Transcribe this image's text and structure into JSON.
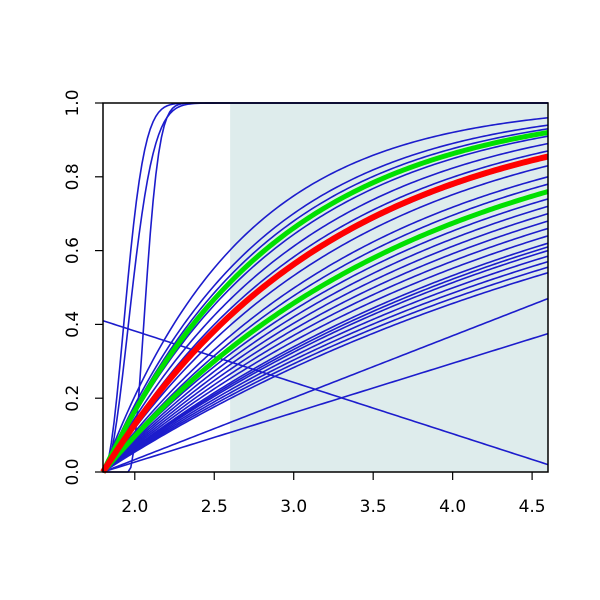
{
  "chart_data": {
    "type": "line",
    "title": "",
    "xlabel": "",
    "ylabel": "",
    "xlim": [
      1.8,
      4.6
    ],
    "ylim": [
      0.0,
      1.0
    ],
    "x_ticks": [
      2.0,
      2.5,
      3.0,
      3.5,
      4.0,
      4.5
    ],
    "x_tick_labels": [
      "2.0",
      "2.5",
      "3.0",
      "3.5",
      "4.0",
      "4.5"
    ],
    "y_ticks": [
      0.0,
      0.2,
      0.4,
      0.6,
      0.8,
      1.0
    ],
    "y_tick_labels": [
      "0.0",
      "0.2",
      "0.4",
      "0.6",
      "0.8",
      "1.0"
    ],
    "grid": false,
    "legend": "none",
    "shaded_region": {
      "x_start": 2.6,
      "x_end": 4.6,
      "y_start": 0.0,
      "y_end": 1.0,
      "color": "#deecec"
    },
    "colors": {
      "sample": "#1c1ccc",
      "mean": "#ff0000",
      "bound": "#00e000",
      "axis": "#000000"
    },
    "curve_family": {
      "x0": 1.8,
      "x_end": 4.6
    },
    "sample_curves": [
      {
        "kind": "steep",
        "x0": 1.8,
        "a": 30
      },
      {
        "kind": "steep",
        "x0": 1.8,
        "a": 20
      },
      {
        "kind": "steep",
        "x0": 1.96,
        "a": 55
      },
      {
        "kind": "linear",
        "y0": 0.41,
        "y1": 0.02
      },
      {
        "kind": "linear",
        "y0": 0.0,
        "y1": 0.47
      },
      {
        "kind": "linear",
        "y0": 0.0,
        "y1": 0.375
      },
      {
        "kind": "sat",
        "y_end": 0.96
      },
      {
        "kind": "sat",
        "y_end": 0.94
      },
      {
        "kind": "sat",
        "y_end": 0.93
      },
      {
        "kind": "sat",
        "y_end": 0.91
      },
      {
        "kind": "sat",
        "y_end": 0.89
      },
      {
        "kind": "sat",
        "y_end": 0.87
      },
      {
        "kind": "sat",
        "y_end": 0.85
      },
      {
        "kind": "sat",
        "y_end": 0.83
      },
      {
        "kind": "sat",
        "y_end": 0.8
      },
      {
        "kind": "sat",
        "y_end": 0.78
      },
      {
        "kind": "sat",
        "y_end": 0.76
      },
      {
        "kind": "sat",
        "y_end": 0.74
      },
      {
        "kind": "sat",
        "y_end": 0.72
      },
      {
        "kind": "sat",
        "y_end": 0.7
      },
      {
        "kind": "sat",
        "y_end": 0.68
      },
      {
        "kind": "sat",
        "y_end": 0.66
      },
      {
        "kind": "sat",
        "y_end": 0.64
      },
      {
        "kind": "sat",
        "y_end": 0.62
      },
      {
        "kind": "sat",
        "y_end": 0.61
      },
      {
        "kind": "sat",
        "y_end": 0.6
      },
      {
        "kind": "sat",
        "y_end": 0.585
      },
      {
        "kind": "sat",
        "y_end": 0.57
      },
      {
        "kind": "sat",
        "y_end": 0.555
      },
      {
        "kind": "sat",
        "y_end": 0.54
      }
    ],
    "mean_curve": {
      "y_end": 0.855
    },
    "bound_curves": [
      {
        "y_end": 0.92
      },
      {
        "y_end": 0.76
      }
    ]
  }
}
